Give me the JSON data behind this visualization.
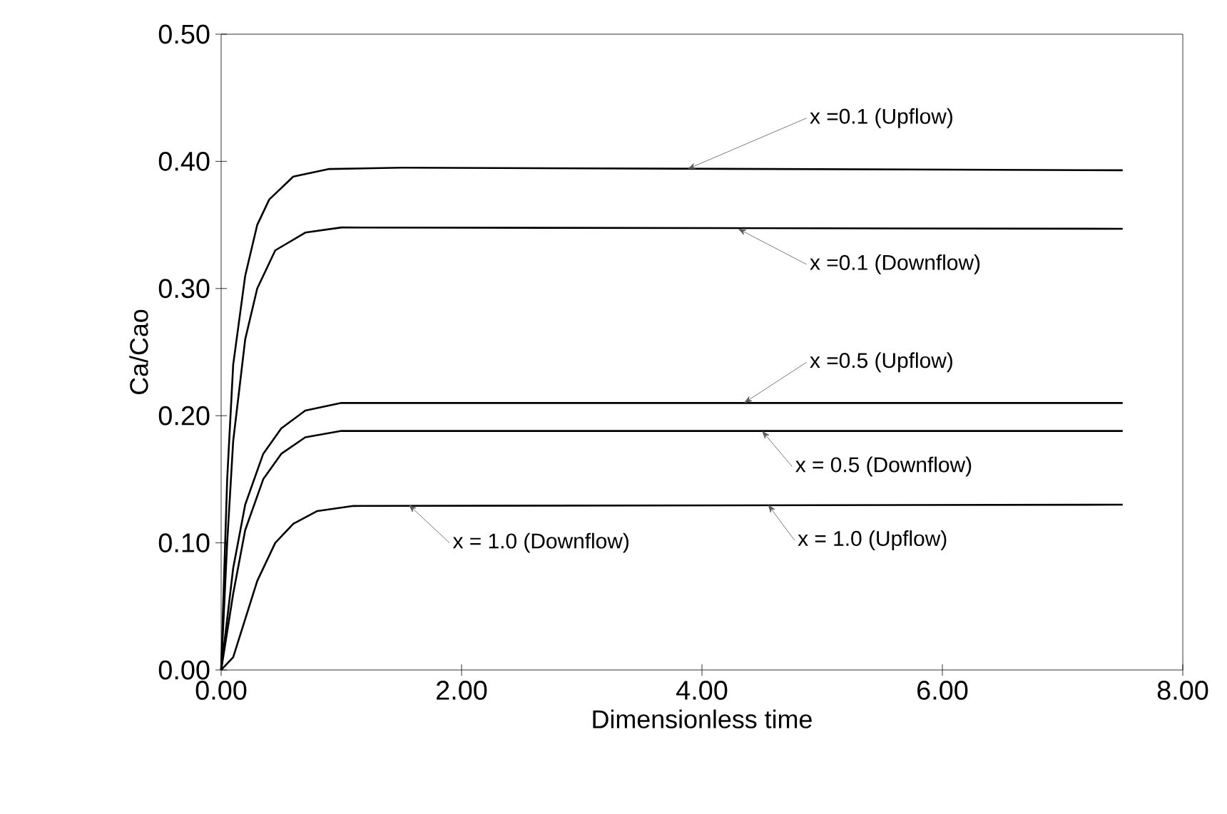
{
  "chart_data": {
    "type": "line",
    "xlabel": "Dimensionless time",
    "ylabel": "Ca/Cao",
    "xlim": [
      0,
      8
    ],
    "ylim": [
      0,
      0.5
    ],
    "xticks": [
      {
        "value": 0,
        "label": "0.00"
      },
      {
        "value": 2,
        "label": "2.00"
      },
      {
        "value": 4,
        "label": "4.00"
      },
      {
        "value": 6,
        "label": "6.00"
      },
      {
        "value": 8,
        "label": "8.00"
      }
    ],
    "yticks": [
      {
        "value": 0,
        "label": "0.00"
      },
      {
        "value": 0.1,
        "label": "0.10"
      },
      {
        "value": 0.2,
        "label": "0.20"
      },
      {
        "value": 0.3,
        "label": "0.30"
      },
      {
        "value": 0.4,
        "label": "0.40"
      },
      {
        "value": 0.5,
        "label": "0.50"
      }
    ],
    "line_style": "solid",
    "series": [
      {
        "color": "#000000",
        "x": [
          0,
          0.05,
          0.1,
          0.2,
          0.3,
          0.4,
          0.6,
          0.9,
          1.5,
          7.5
        ],
        "values": [
          0,
          0.15,
          0.24,
          0.31,
          0.35,
          0.37,
          0.388,
          0.394,
          0.395,
          0.393
        ]
      },
      {
        "color": "#000000",
        "x": [
          0,
          0.05,
          0.1,
          0.2,
          0.3,
          0.45,
          0.7,
          1.0,
          7.5
        ],
        "values": [
          0,
          0.1,
          0.18,
          0.26,
          0.3,
          0.33,
          0.344,
          0.348,
          0.347
        ]
      },
      {
        "color": "#000000",
        "x": [
          0,
          0.05,
          0.1,
          0.2,
          0.35,
          0.5,
          0.7,
          1.0,
          7.5
        ],
        "values": [
          0,
          0.04,
          0.08,
          0.13,
          0.17,
          0.19,
          0.204,
          0.21,
          0.21
        ]
      },
      {
        "color": "#000000",
        "x": [
          0,
          0.05,
          0.1,
          0.2,
          0.35,
          0.5,
          0.7,
          1.0,
          7.5
        ],
        "values": [
          0,
          0.03,
          0.06,
          0.11,
          0.15,
          0.17,
          0.183,
          0.188,
          0.188
        ]
      },
      {
        "color": "#000000",
        "x": [
          0,
          0.1,
          0.2,
          0.3,
          0.45,
          0.6,
          0.8,
          1.1,
          7.5
        ],
        "values": [
          0,
          0.01,
          0.04,
          0.07,
          0.1,
          0.115,
          0.125,
          0.129,
          0.13
        ]
      }
    ],
    "annotations": [
      {
        "text": "x =0.1 (Upflow)",
        "x": 3.88,
        "y": 0.394
      },
      {
        "text": "x =0.1 (Downflow)",
        "x": 4.3,
        "y": 0.347
      },
      {
        "text": "x =0.5 (Upflow)",
        "x": 4.35,
        "y": 0.21
      },
      {
        "text": "x = 0.5 (Downflow)",
        "x": 4.5,
        "y": 0.188
      },
      {
        "text": "x = 1.0 (Downflow)",
        "x": 1.56,
        "y": 0.13
      },
      {
        "text": "x = 1.0 (Upflow)",
        "x": 4.55,
        "y": 0.13
      }
    ]
  }
}
